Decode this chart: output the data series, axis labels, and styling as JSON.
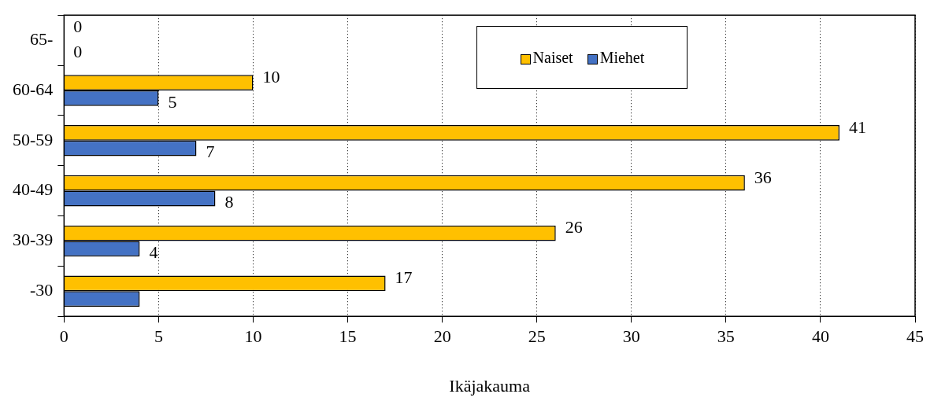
{
  "chart_data": {
    "type": "bar",
    "orientation": "horizontal",
    "xlabel": "Ikäjakauma",
    "categories": [
      "65-",
      "60-64",
      "50-59",
      "40-49",
      "30-39",
      "-30"
    ],
    "series": [
      {
        "name": "Naiset",
        "color": "#ffc000",
        "values": [
          0,
          10,
          41,
          36,
          26,
          17
        ],
        "value_labels": [
          "0",
          "10",
          "41",
          "36",
          "26",
          "17"
        ]
      },
      {
        "name": "Miehet",
        "color": "#4472c4",
        "values": [
          0,
          5,
          7,
          8,
          4,
          4
        ],
        "value_labels": [
          "0",
          "5",
          "7",
          "8",
          "4",
          null
        ]
      }
    ],
    "xlim": [
      0,
      45
    ],
    "xticks": [
      0,
      5,
      10,
      15,
      20,
      25,
      30,
      35,
      40,
      45
    ],
    "grid": "x",
    "legend": "top right"
  }
}
